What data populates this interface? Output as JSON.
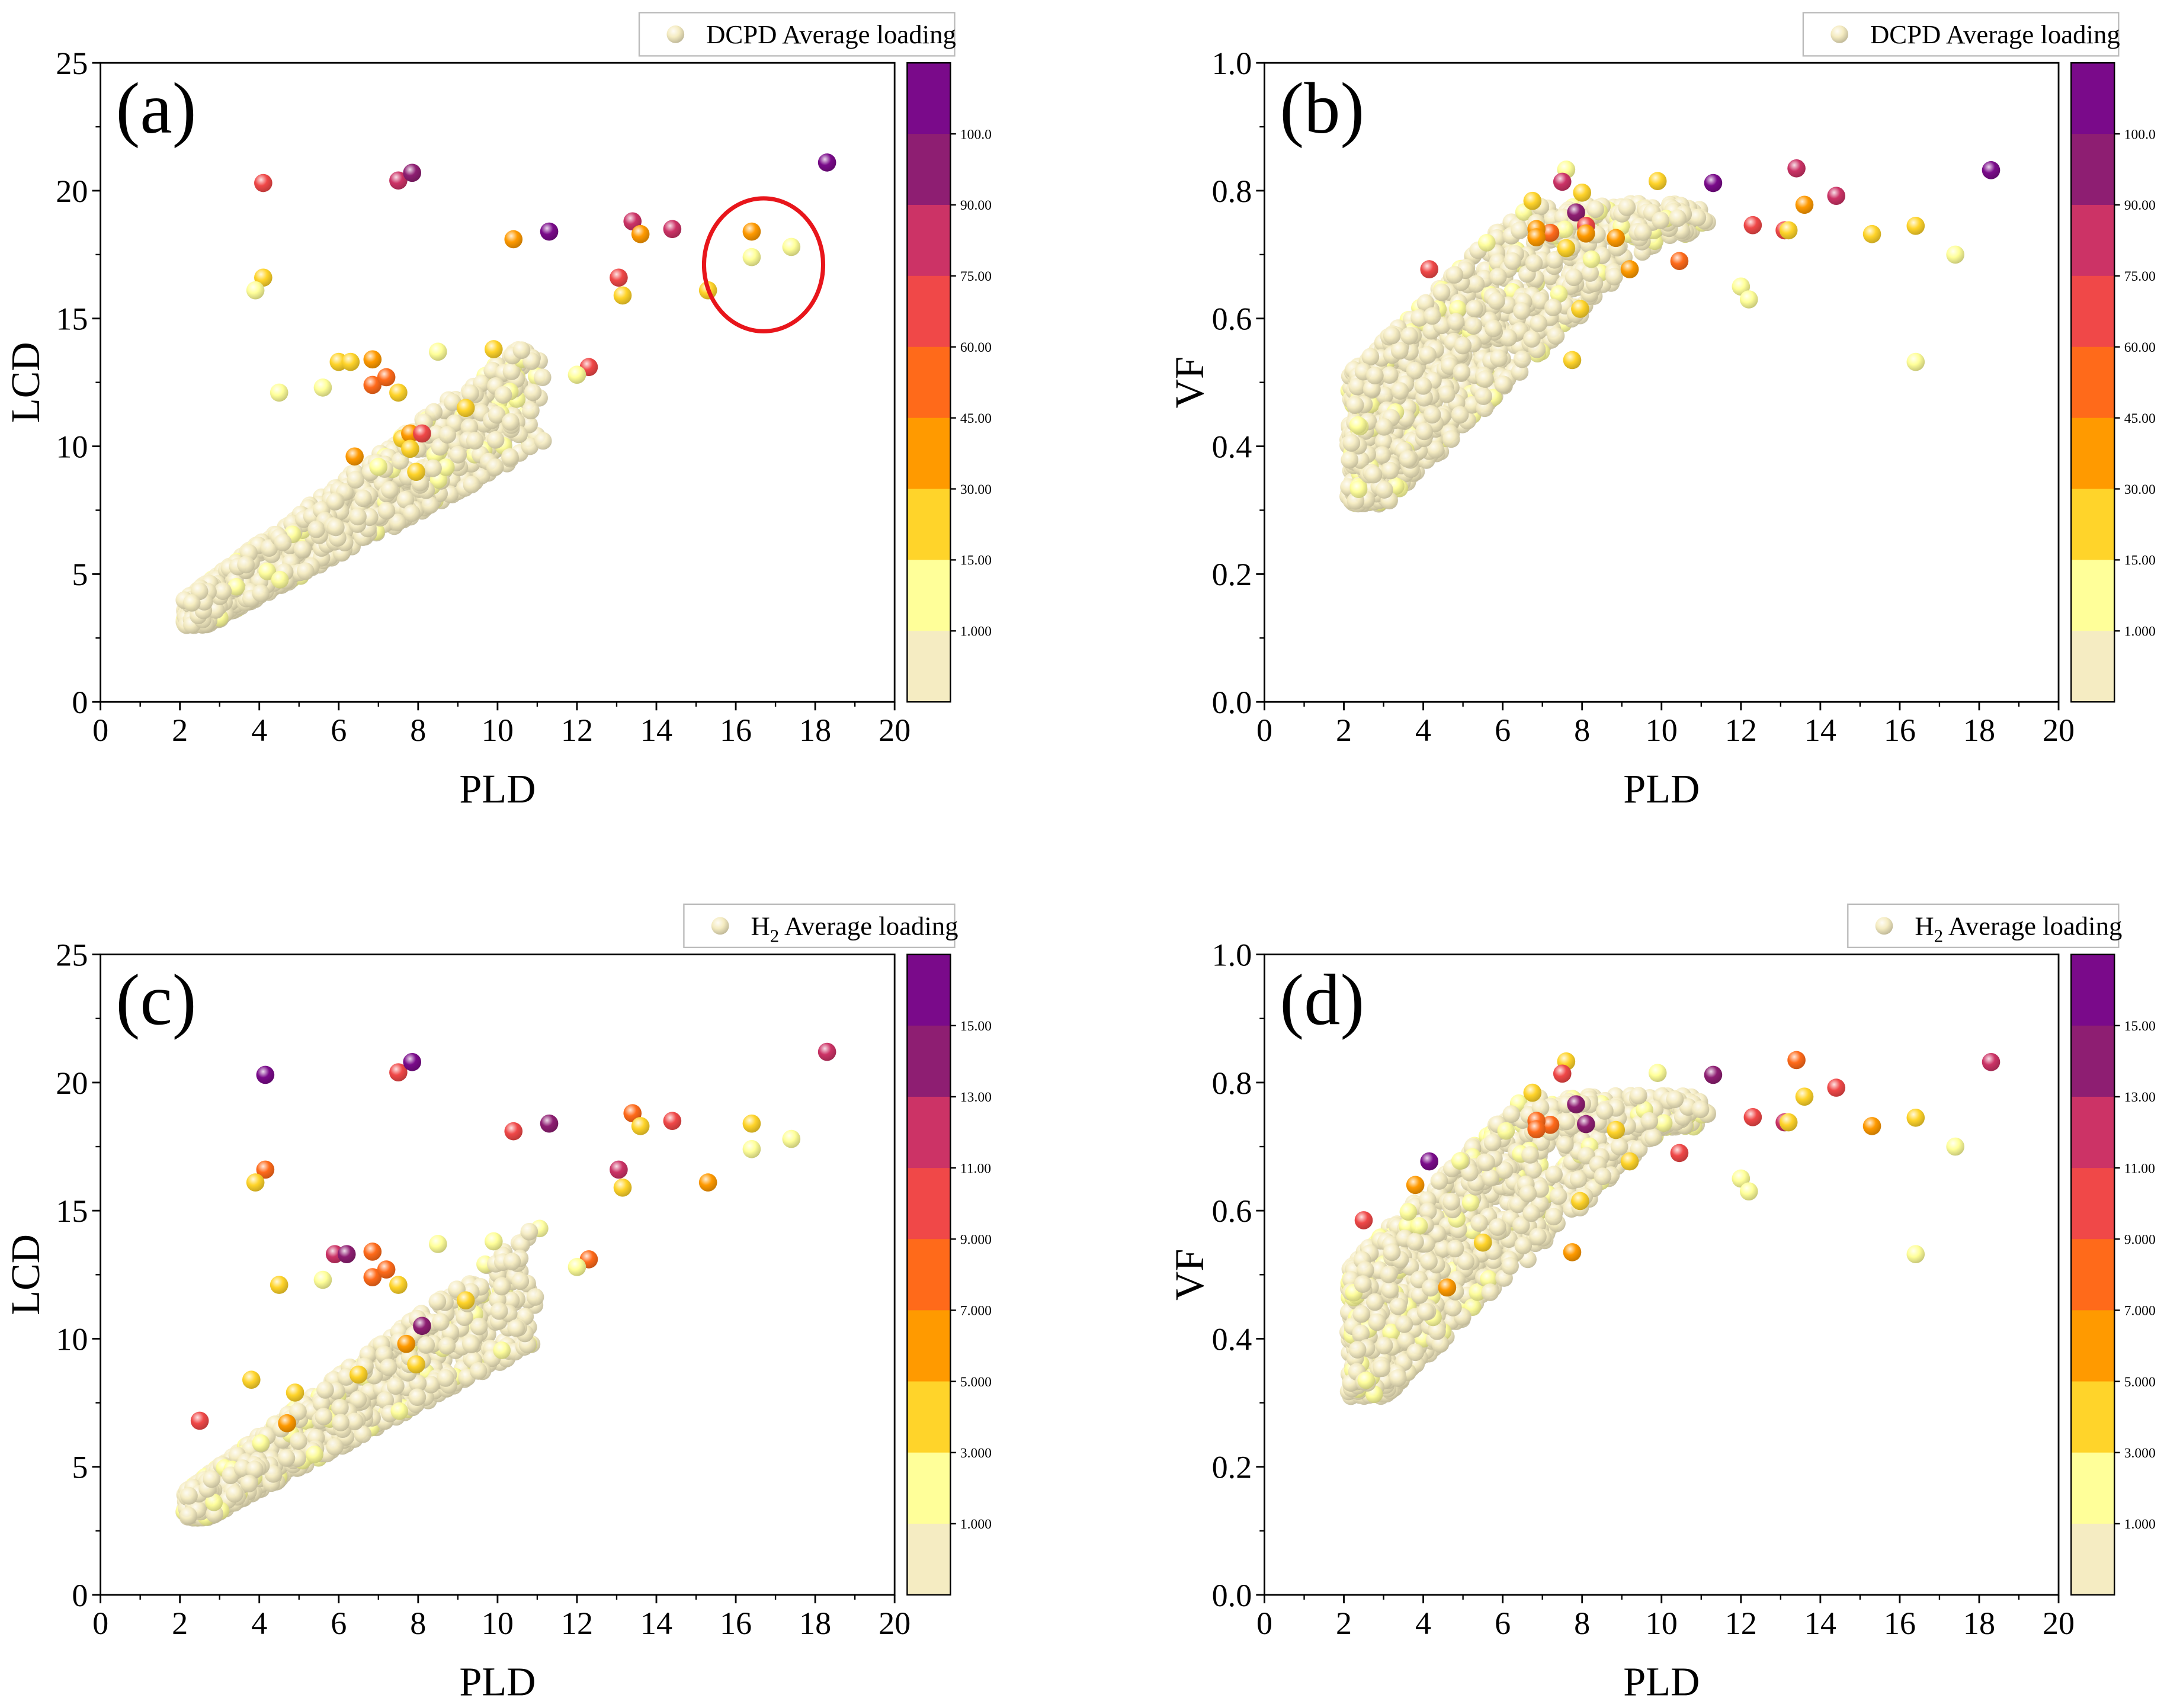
{
  "colors": {
    "ball_low": "#f7efc6",
    "dcpd_scale": [
      "#f5ecc2",
      "#ffff99",
      "#ffd42a",
      "#ff9a00",
      "#ff6a1a",
      "#f04848",
      "#cc3366",
      "#8e1e72",
      "#7a0a8a"
    ],
    "h2_scale": [
      "#f5ecc2",
      "#ffff99",
      "#ffd42a",
      "#ff9a00",
      "#ff6a1a",
      "#f04848",
      "#cc3366",
      "#8e1e72",
      "#7a0a8a"
    ],
    "highlight_circle": "#e8151b"
  },
  "chart_data": [
    {
      "id": "a",
      "type": "scatter",
      "panel_label": "(a)",
      "xlabel": "PLD",
      "ylabel": "LCD",
      "xlim": [
        0,
        20
      ],
      "ylim": [
        0,
        25
      ],
      "xticks": [
        "0",
        "2",
        "4",
        "6",
        "8",
        "10",
        "12",
        "14",
        "16",
        "18",
        "20"
      ],
      "yticks": [
        "0",
        "5",
        "10",
        "15",
        "20",
        "25"
      ],
      "legend": "DCPD Average loading",
      "legend_subscript": "",
      "legend_position": "top-right",
      "colorbar_ticks": [
        "100.0",
        "90.00",
        "75.00",
        "60.00",
        "45.00",
        "30.00",
        "15.00",
        "1.000"
      ],
      "scale": "dcpd",
      "cloud": "lcd",
      "annotation": {
        "type": "circle",
        "center": [
          16.7,
          17.1
        ],
        "radii_data": [
          1.5,
          2.6
        ],
        "note": "highlighted cluster"
      },
      "points": [
        [
          4.1,
          20.3,
          5
        ],
        [
          7.5,
          20.4,
          6
        ],
        [
          7.85,
          20.7,
          7
        ],
        [
          18.3,
          21.1,
          8
        ],
        [
          11.3,
          18.4,
          8
        ],
        [
          13.4,
          18.8,
          6
        ],
        [
          14.4,
          18.5,
          6
        ],
        [
          10.4,
          18.1,
          3
        ],
        [
          13.6,
          18.3,
          3
        ],
        [
          16.4,
          18.4,
          3
        ],
        [
          16.4,
          17.4,
          1
        ],
        [
          17.4,
          17.8,
          1
        ],
        [
          13.05,
          16.6,
          5
        ],
        [
          13.15,
          15.9,
          2
        ],
        [
          15.3,
          16.1,
          2
        ],
        [
          4.1,
          16.6,
          2
        ],
        [
          3.9,
          16.1,
          1
        ],
        [
          12.3,
          13.1,
          5
        ],
        [
          12.0,
          12.8,
          1
        ],
        [
          9.9,
          13.8,
          2
        ],
        [
          6.0,
          13.3,
          2
        ],
        [
          6.3,
          13.3,
          2
        ],
        [
          6.85,
          13.4,
          3
        ],
        [
          6.85,
          12.4,
          4
        ],
        [
          7.2,
          12.7,
          4
        ],
        [
          7.5,
          12.1,
          2
        ],
        [
          8.5,
          13.7,
          1
        ],
        [
          4.5,
          12.1,
          1
        ],
        [
          5.6,
          12.3,
          1
        ],
        [
          9.2,
          11.5,
          2
        ],
        [
          6.4,
          9.6,
          3
        ],
        [
          7.6,
          10.3,
          2
        ],
        [
          7.8,
          10.5,
          3
        ],
        [
          8.1,
          10.5,
          5
        ],
        [
          7.8,
          9.9,
          2
        ],
        [
          7.95,
          9.0,
          2
        ],
        [
          7.0,
          9.2,
          1
        ]
      ]
    },
    {
      "id": "b",
      "type": "scatter",
      "panel_label": "(b)",
      "xlabel": "PLD",
      "ylabel": "VF",
      "xlim": [
        0,
        20
      ],
      "ylim": [
        0,
        1
      ],
      "xticks": [
        "0",
        "2",
        "4",
        "6",
        "8",
        "10",
        "12",
        "14",
        "16",
        "18",
        "20"
      ],
      "yticks": [
        "0.0",
        "0.2",
        "0.4",
        "0.6",
        "0.8",
        "1.0"
      ],
      "legend": "DCPD Average loading",
      "legend_subscript": "",
      "legend_position": "top-right",
      "colorbar_ticks": [
        "100.0",
        "90.00",
        "75.00",
        "60.00",
        "45.00",
        "30.00",
        "15.00",
        "1.000"
      ],
      "scale": "dcpd",
      "cloud": "vf",
      "points": [
        [
          7.6,
          0.833,
          1
        ],
        [
          7.5,
          0.814,
          6
        ],
        [
          8.0,
          0.797,
          2
        ],
        [
          9.9,
          0.815,
          2
        ],
        [
          11.3,
          0.812,
          8
        ],
        [
          13.4,
          0.835,
          6
        ],
        [
          14.4,
          0.792,
          6
        ],
        [
          18.3,
          0.832,
          8
        ],
        [
          13.6,
          0.778,
          3
        ],
        [
          12.3,
          0.746,
          5
        ],
        [
          13.1,
          0.738,
          5
        ],
        [
          13.2,
          0.738,
          2
        ],
        [
          15.3,
          0.732,
          2
        ],
        [
          16.4,
          0.745,
          2
        ],
        [
          17.4,
          0.7,
          1
        ],
        [
          16.4,
          0.532,
          1
        ],
        [
          7.85,
          0.766,
          7
        ],
        [
          8.1,
          0.745,
          5
        ],
        [
          8.1,
          0.733,
          3
        ],
        [
          7.2,
          0.734,
          4
        ],
        [
          6.85,
          0.74,
          3
        ],
        [
          6.85,
          0.727,
          3
        ],
        [
          6.75,
          0.784,
          2
        ],
        [
          7.6,
          0.71,
          2
        ],
        [
          8.85,
          0.726,
          3
        ],
        [
          9.2,
          0.677,
          3
        ],
        [
          10.45,
          0.69,
          4
        ],
        [
          4.15,
          0.677,
          5
        ],
        [
          7.75,
          0.535,
          2
        ],
        [
          7.95,
          0.615,
          2
        ],
        [
          12.0,
          0.65,
          1
        ],
        [
          12.2,
          0.63,
          1
        ]
      ]
    },
    {
      "id": "c",
      "type": "scatter",
      "panel_label": "(c)",
      "xlabel": "PLD",
      "ylabel": "LCD",
      "xlim": [
        0,
        20
      ],
      "ylim": [
        0,
        25
      ],
      "xticks": [
        "0",
        "2",
        "4",
        "6",
        "8",
        "10",
        "12",
        "14",
        "16",
        "18",
        "20"
      ],
      "yticks": [
        "0",
        "5",
        "10",
        "15",
        "20",
        "25"
      ],
      "legend": "H",
      "legend_subscript": "2",
      "legend_suffix": " Average loading",
      "legend_position": "top-right",
      "colorbar_ticks": [
        "15.00",
        "13.00",
        "11.00",
        "9.000",
        "7.000",
        "5.000",
        "3.000",
        "1.000"
      ],
      "scale": "h2",
      "cloud": "lcd",
      "points": [
        [
          4.15,
          20.3,
          8
        ],
        [
          7.5,
          20.4,
          5
        ],
        [
          7.85,
          20.8,
          8
        ],
        [
          18.3,
          21.2,
          6
        ],
        [
          11.3,
          18.4,
          7
        ],
        [
          13.4,
          18.8,
          4
        ],
        [
          14.4,
          18.5,
          5
        ],
        [
          10.4,
          18.1,
          5
        ],
        [
          13.6,
          18.3,
          2
        ],
        [
          16.4,
          18.4,
          2
        ],
        [
          16.4,
          17.4,
          1
        ],
        [
          17.4,
          17.8,
          1
        ],
        [
          13.05,
          16.6,
          6
        ],
        [
          13.15,
          15.9,
          2
        ],
        [
          15.3,
          16.1,
          3
        ],
        [
          4.15,
          16.6,
          4
        ],
        [
          3.9,
          16.1,
          2
        ],
        [
          12.3,
          13.1,
          4
        ],
        [
          12.0,
          12.8,
          1
        ],
        [
          9.9,
          13.8,
          1
        ],
        [
          5.9,
          13.3,
          6
        ],
        [
          6.2,
          13.3,
          7
        ],
        [
          6.85,
          13.4,
          4
        ],
        [
          6.85,
          12.4,
          4
        ],
        [
          7.2,
          12.7,
          4
        ],
        [
          7.5,
          12.1,
          2
        ],
        [
          8.5,
          13.7,
          1
        ],
        [
          4.5,
          12.1,
          2
        ],
        [
          5.6,
          12.3,
          1
        ],
        [
          9.2,
          11.5,
          2
        ],
        [
          2.5,
          6.8,
          5
        ],
        [
          8.1,
          10.5,
          7
        ],
        [
          7.7,
          9.8,
          3
        ],
        [
          7.95,
          9.0,
          2
        ],
        [
          3.8,
          8.4,
          2
        ],
        [
          4.9,
          7.9,
          2
        ],
        [
          4.7,
          6.7,
          3
        ],
        [
          6.5,
          8.6,
          2
        ]
      ]
    },
    {
      "id": "d",
      "type": "scatter",
      "panel_label": "(d)",
      "xlabel": "PLD",
      "ylabel": "VF",
      "xlim": [
        0,
        20
      ],
      "ylim": [
        0,
        1
      ],
      "xticks": [
        "0",
        "2",
        "4",
        "6",
        "8",
        "10",
        "12",
        "14",
        "16",
        "18",
        "20"
      ],
      "yticks": [
        "0.0",
        "0.2",
        "0.4",
        "0.6",
        "0.8",
        "1.0"
      ],
      "legend": "H",
      "legend_subscript": "2",
      "legend_suffix": " Average loading",
      "legend_position": "top-right",
      "colorbar_ticks": [
        "15.00",
        "13.00",
        "11.00",
        "9.000",
        "7.000",
        "5.000",
        "3.000",
        "1.000"
      ],
      "scale": "h2",
      "cloud": "vf",
      "points": [
        [
          7.6,
          0.833,
          2
        ],
        [
          7.5,
          0.814,
          5
        ],
        [
          9.9,
          0.815,
          1
        ],
        [
          11.3,
          0.812,
          7
        ],
        [
          13.4,
          0.835,
          4
        ],
        [
          14.4,
          0.792,
          5
        ],
        [
          18.3,
          0.832,
          6
        ],
        [
          13.6,
          0.778,
          2
        ],
        [
          12.3,
          0.746,
          5
        ],
        [
          13.1,
          0.738,
          6
        ],
        [
          13.2,
          0.738,
          2
        ],
        [
          15.3,
          0.732,
          3
        ],
        [
          16.4,
          0.745,
          2
        ],
        [
          17.4,
          0.7,
          1
        ],
        [
          16.4,
          0.532,
          1
        ],
        [
          7.85,
          0.766,
          7
        ],
        [
          8.1,
          0.735,
          7
        ],
        [
          7.2,
          0.734,
          4
        ],
        [
          6.85,
          0.74,
          4
        ],
        [
          6.85,
          0.727,
          4
        ],
        [
          6.75,
          0.784,
          2
        ],
        [
          8.85,
          0.726,
          2
        ],
        [
          9.2,
          0.677,
          2
        ],
        [
          10.45,
          0.69,
          5
        ],
        [
          4.15,
          0.677,
          8
        ],
        [
          2.5,
          0.585,
          5
        ],
        [
          7.75,
          0.535,
          3
        ],
        [
          7.95,
          0.615,
          2
        ],
        [
          12.0,
          0.65,
          1
        ],
        [
          12.2,
          0.63,
          1
        ],
        [
          4.6,
          0.48,
          3
        ],
        [
          3.8,
          0.64,
          3
        ],
        [
          5.5,
          0.55,
          2
        ]
      ]
    }
  ]
}
